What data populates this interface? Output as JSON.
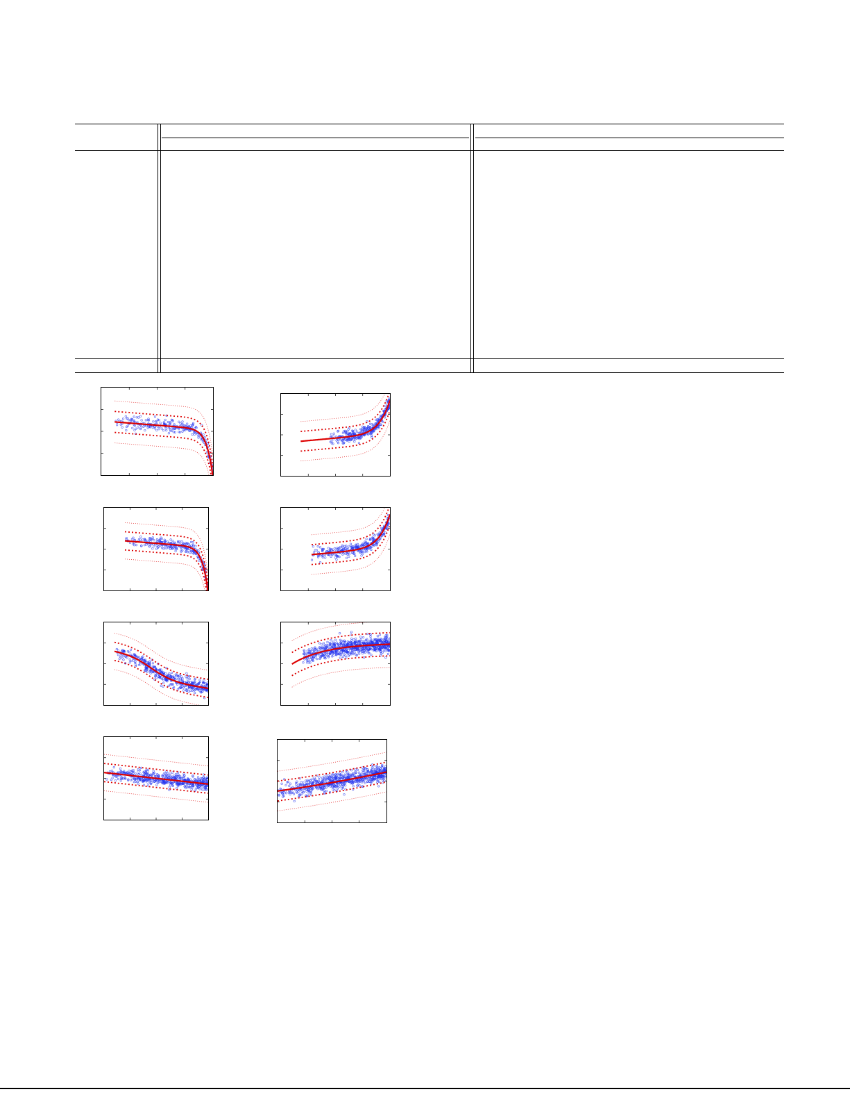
{
  "colors": {
    "rule": "#000000",
    "curve": "#dd0000",
    "points": "#2233ee"
  },
  "chart_data": [
    {
      "type": "scatter",
      "shape": "decreasing-with-drop",
      "xlabel": "",
      "ylabel": "",
      "legend": "none",
      "grid": false
    },
    {
      "type": "scatter",
      "shape": "increasing-with-rise",
      "xlabel": "",
      "ylabel": "",
      "legend": "none",
      "grid": false
    },
    {
      "type": "scatter",
      "shape": "decreasing-with-drop",
      "xlabel": "",
      "ylabel": "",
      "legend": "none",
      "grid": false
    },
    {
      "type": "scatter",
      "shape": "increasing-with-rise",
      "xlabel": "",
      "ylabel": "",
      "legend": "none",
      "grid": false
    },
    {
      "type": "scatter",
      "shape": "decreasing-sigmoid",
      "xlabel": "",
      "ylabel": "",
      "legend": "none",
      "grid": false
    },
    {
      "type": "scatter",
      "shape": "increasing-saturating",
      "xlabel": "",
      "ylabel": "",
      "legend": "none",
      "grid": false
    },
    {
      "type": "scatter",
      "shape": "decreasing-linear",
      "xlabel": "",
      "ylabel": "",
      "legend": "none",
      "grid": false
    },
    {
      "type": "scatter",
      "shape": "increasing-linear",
      "xlabel": "",
      "ylabel": "",
      "legend": "none",
      "grid": false
    }
  ]
}
